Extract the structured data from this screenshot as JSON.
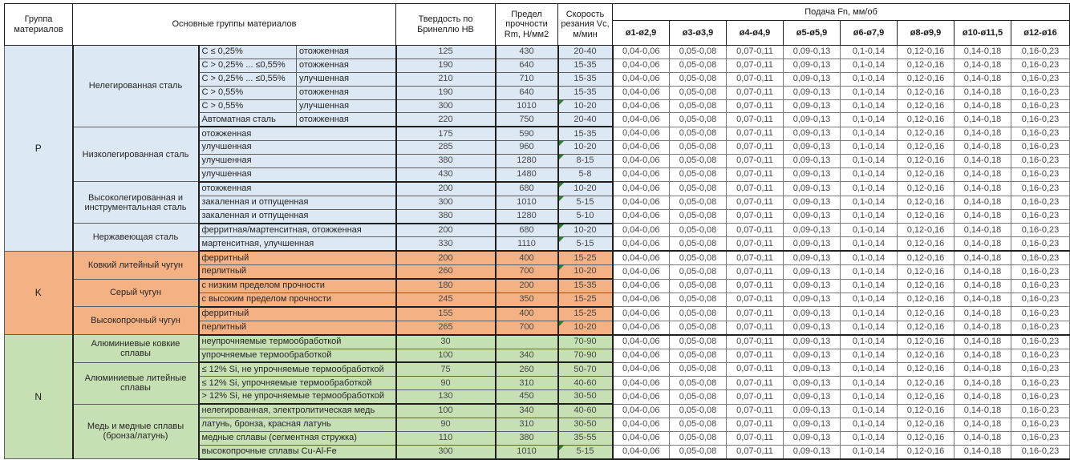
{
  "header": {
    "group": "Группа материалов",
    "main": "Основные группы материалов",
    "hardness": "Твердость по Бринеллю HB",
    "strength": "Предел прочности Rm, Н/мм2",
    "speed": "Скорость резания Vc, м/мин",
    "feed": "Подача Fn, мм/об",
    "feed_cols": [
      "ø1-ø2,9",
      "ø3-ø3,9",
      "ø4-ø4,9",
      "ø5-ø5,9",
      "ø6-ø7,9",
      "ø8-ø9,9",
      "ø10-ø11,5",
      "ø12-ø16"
    ]
  },
  "feed_values": [
    "0,04-0,06",
    "0,05-0,08",
    "0,07-0,11",
    "0,09-0,13",
    "0,1-0,14",
    "0,12-0,16",
    "0,14-0,18",
    "0,16-0,23"
  ],
  "colors": {
    "group_p": "#dce9f5",
    "group_k": "#f4b183",
    "group_n": "#c6e0b4",
    "flag_triangle": "#2e7d32"
  },
  "groups": [
    {
      "code": "P",
      "color": "#dce9f5",
      "families": [
        {
          "name": "Нелегированная сталь",
          "rows": [
            {
              "desc_a": "C ≤ 0,25%",
              "desc_b": "отожженная",
              "hb": "125",
              "rm": "430",
              "vc": "20-40"
            },
            {
              "desc_a": "C > 0,25% ... ≤0,55%",
              "desc_b": "отожженная",
              "hb": "190",
              "rm": "640",
              "vc": "15-35"
            },
            {
              "desc_a": "C > 0,25% ... ≤0,55%",
              "desc_b": "улучшенная",
              "hb": "210",
              "rm": "710",
              "vc": "15-35"
            },
            {
              "desc_a": "C > 0,55%",
              "desc_b": "отожженная",
              "hb": "190",
              "rm": "640",
              "vc": "15-35"
            },
            {
              "desc_a": "C > 0,55%",
              "desc_b": "улучшенная",
              "hb": "300",
              "rm": "1010",
              "vc": "10-20",
              "flag": true
            },
            {
              "desc_a": "Автоматная сталь",
              "desc_b": "отожженная",
              "hb": "220",
              "rm": "750",
              "vc": "20-40"
            }
          ]
        },
        {
          "name": "Низколегированная сталь",
          "rows": [
            {
              "desc": "отожженная",
              "hb": "175",
              "rm": "590",
              "vc": "15-35"
            },
            {
              "desc": "улучшенная",
              "hb": "285",
              "rm": "960",
              "vc": "10-20",
              "flag": true
            },
            {
              "desc": "улучшенная",
              "hb": "380",
              "rm": "1280",
              "vc": "8-15",
              "flag": true
            },
            {
              "desc": "улучшенная",
              "hb": "430",
              "rm": "1480",
              "vc": "5-8"
            }
          ]
        },
        {
          "name": "Высоколегированная и инструментальная сталь",
          "rows": [
            {
              "desc": "отожженная",
              "hb": "200",
              "rm": "680",
              "vc": "10-20",
              "flag": true
            },
            {
              "desc": "закаленная и отпущенная",
              "hb": "300",
              "rm": "1010",
              "vc": "5-15",
              "flag": true
            },
            {
              "desc": "закаленная и отпущенная",
              "hb": "380",
              "rm": "1280",
              "vc": "5-10"
            }
          ]
        },
        {
          "name": "Нержавеющая сталь",
          "rows": [
            {
              "desc": "ферритная/мартенситная, отожженная",
              "hb": "200",
              "rm": "680",
              "vc": "10-20",
              "flag": true
            },
            {
              "desc": "мартенситная, улучшенная",
              "hb": "330",
              "rm": "1110",
              "vc": "5-15",
              "flag": true
            }
          ]
        }
      ]
    },
    {
      "code": "K",
      "color": "#f4b183",
      "families": [
        {
          "name": "Ковкий литейный чугун",
          "rows": [
            {
              "desc": "ферритный",
              "hb": "200",
              "rm": "400",
              "vc": "15-25"
            },
            {
              "desc": "перлитный",
              "hb": "260",
              "rm": "700",
              "vc": "10-20",
              "flag": true
            }
          ]
        },
        {
          "name": "Серый чугун",
          "rows": [
            {
              "desc": "с низким пределом прочности",
              "hb": "180",
              "rm": "200",
              "vc": "15-35"
            },
            {
              "desc": "с высоким пределом прочности",
              "hb": "245",
              "rm": "350",
              "vc": "15-25"
            }
          ]
        },
        {
          "name": "Высокопрочный чугун",
          "rows": [
            {
              "desc": "ферритный",
              "hb": "155",
              "rm": "400",
              "vc": "15-25"
            },
            {
              "desc": "перлитный",
              "hb": "265",
              "rm": "700",
              "vc": "10-20",
              "flag": true
            }
          ]
        }
      ]
    },
    {
      "code": "N",
      "color": "#c6e0b4",
      "families": [
        {
          "name": "Алюминиевые ковкие сплавы",
          "rows": [
            {
              "desc": "неупрочняемые термообработкой",
              "hb": "30",
              "rm": "",
              "vc": "70-90"
            },
            {
              "desc": "упрочняемые термообработкой",
              "hb": "100",
              "rm": "340",
              "vc": "70-90"
            }
          ]
        },
        {
          "name": "Алюминиевые литейные сплавы",
          "rows": [
            {
              "desc": "≤ 12% Si, не упрочняемые термообработкой",
              "hb": "75",
              "rm": "260",
              "vc": "50-70"
            },
            {
              "desc": "≤ 12% Si, упрочняемые термообработкой",
              "hb": "90",
              "rm": "310",
              "vc": "40-60"
            },
            {
              "desc": "> 12% Si, не упрочняемые термообработкой",
              "hb": "130",
              "rm": "450",
              "vc": "30-50"
            }
          ]
        },
        {
          "name": "Медь и медные сплавы (бронза/латунь)",
          "rows": [
            {
              "desc": "нелегированная, электролитическая медь",
              "hb": "100",
              "rm": "340",
              "vc": "40-60"
            },
            {
              "desc": "латунь, бронза, красная латунь",
              "hb": "90",
              "rm": "310",
              "vc": "30-50"
            },
            {
              "desc": "медные сплавы (сегментная стружка)",
              "hb": "110",
              "rm": "380",
              "vc": "35-55"
            },
            {
              "desc": "высокопрочные сплавы Cu-Al-Fe",
              "hb": "300",
              "rm": "1010",
              "vc": "5-15",
              "flag": true
            }
          ]
        }
      ]
    }
  ]
}
